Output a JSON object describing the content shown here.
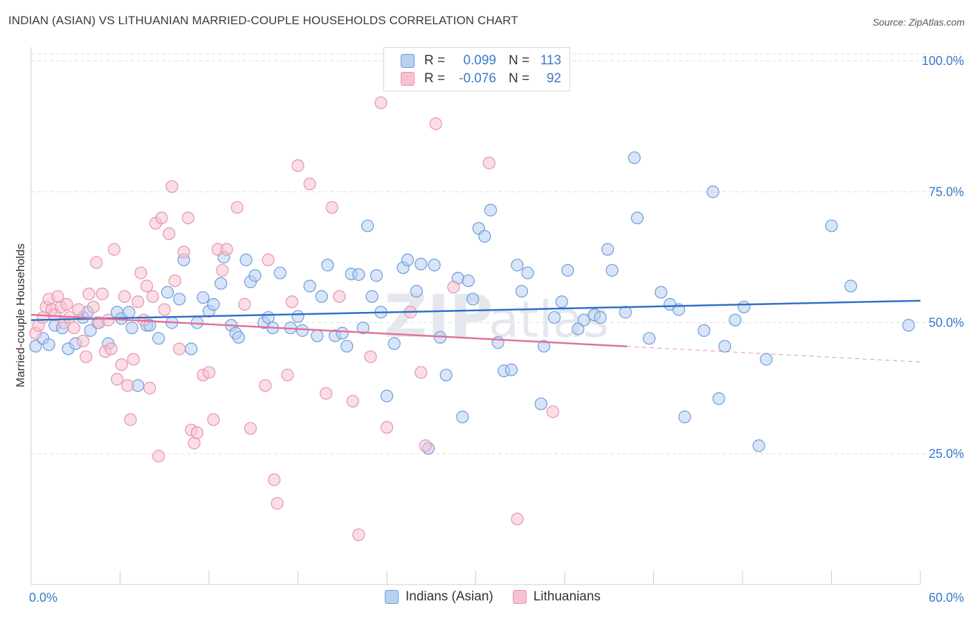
{
  "header": {
    "title": "INDIAN (ASIAN) VS LITHUANIAN MARRIED-COUPLE HOUSEHOLDS CORRELATION CHART",
    "source": "Source: ZipAtlas.com"
  },
  "legend": {
    "rows": [
      {
        "r_label": "R =",
        "r_value": "0.099",
        "n_label": "N =",
        "n_value": "113"
      },
      {
        "r_label": "R =",
        "r_value": "-0.076",
        "n_label": "N =",
        "n_value": "92"
      }
    ]
  },
  "colors": {
    "blue_fill": "#b8d0f2",
    "blue_stroke": "#6c9bd8",
    "blue_line": "#2f6fc8",
    "pink_fill": "#f6c2d2",
    "pink_stroke": "#e890ad",
    "pink_line": "#e0709a",
    "axis_text": "#3a78c8",
    "grid": "#dddddd"
  },
  "chart_data": {
    "type": "scatter",
    "title": "INDIAN (ASIAN) VS LITHUANIAN MARRIED-COUPLE HOUSEHOLDS CORRELATION CHART",
    "xlabel": "",
    "ylabel": "Married-couple Households",
    "xlim": [
      0,
      60
    ],
    "ylim": [
      0,
      105
    ],
    "x_tick_labels": [
      "0.0%",
      "60.0%"
    ],
    "y_ticks": [
      25,
      50,
      75,
      100
    ],
    "y_tick_labels": [
      "25.0%",
      "50.0%",
      "75.0%",
      "100.0%"
    ],
    "watermark": "ZIPatlas",
    "series": [
      {
        "name": "Indians (Asian)",
        "color": "blue",
        "trend": {
          "x": [
            0,
            60
          ],
          "y": [
            50.5,
            54.2
          ],
          "solid_until": 60
        },
        "points": [
          [
            0.3,
            45.5
          ],
          [
            0.8,
            47
          ],
          [
            1.2,
            45.8
          ],
          [
            1.6,
            49.5
          ],
          [
            2.1,
            49
          ],
          [
            2.5,
            45
          ],
          [
            3.0,
            46
          ],
          [
            3.5,
            51
          ],
          [
            3.8,
            52
          ],
          [
            4.0,
            48.5
          ],
          [
            4.5,
            50
          ],
          [
            5.2,
            46
          ],
          [
            5.8,
            52
          ],
          [
            6.1,
            50.8
          ],
          [
            6.6,
            52
          ],
          [
            6.8,
            49
          ],
          [
            7.2,
            38
          ],
          [
            7.8,
            49.5
          ],
          [
            8.0,
            49.5
          ],
          [
            8.6,
            47
          ],
          [
            9.2,
            55.8
          ],
          [
            9.5,
            50
          ],
          [
            10.0,
            54.5
          ],
          [
            10.3,
            62
          ],
          [
            10.8,
            45
          ],
          [
            11.2,
            50
          ],
          [
            11.6,
            54.8
          ],
          [
            12.0,
            52.2
          ],
          [
            12.3,
            53.5
          ],
          [
            12.8,
            57.5
          ],
          [
            13.0,
            62.5
          ],
          [
            13.5,
            49.5
          ],
          [
            13.8,
            48
          ],
          [
            14.0,
            47.2
          ],
          [
            14.5,
            62
          ],
          [
            14.8,
            57.8
          ],
          [
            15.1,
            59
          ],
          [
            15.7,
            50
          ],
          [
            16.0,
            51
          ],
          [
            16.3,
            49
          ],
          [
            16.8,
            59.5
          ],
          [
            17.5,
            49
          ],
          [
            18.0,
            51.2
          ],
          [
            18.3,
            48.5
          ],
          [
            18.8,
            57
          ],
          [
            19.3,
            47.5
          ],
          [
            19.6,
            55
          ],
          [
            20.0,
            61
          ],
          [
            20.5,
            47.5
          ],
          [
            21.0,
            48
          ],
          [
            21.3,
            45.5
          ],
          [
            21.6,
            59.3
          ],
          [
            22.1,
            59.2
          ],
          [
            22.4,
            49
          ],
          [
            22.7,
            68.5
          ],
          [
            23.0,
            55
          ],
          [
            23.3,
            59
          ],
          [
            23.6,
            52
          ],
          [
            24.0,
            36
          ],
          [
            24.5,
            46
          ],
          [
            25.1,
            60.5
          ],
          [
            25.4,
            62
          ],
          [
            26.0,
            56
          ],
          [
            26.3,
            61.2
          ],
          [
            26.8,
            26
          ],
          [
            27.2,
            61
          ],
          [
            27.6,
            47.2
          ],
          [
            28.0,
            40
          ],
          [
            28.8,
            58.5
          ],
          [
            29.1,
            32
          ],
          [
            29.5,
            58
          ],
          [
            29.8,
            54.5
          ],
          [
            30.2,
            68
          ],
          [
            30.6,
            66.5
          ],
          [
            31.0,
            71.5
          ],
          [
            31.5,
            46.2
          ],
          [
            31.9,
            40.8
          ],
          [
            32.4,
            41
          ],
          [
            32.8,
            61
          ],
          [
            33.1,
            56
          ],
          [
            33.5,
            59.5
          ],
          [
            34.4,
            34.5
          ],
          [
            34.6,
            45.5
          ],
          [
            35.3,
            51
          ],
          [
            35.8,
            54
          ],
          [
            36.2,
            60
          ],
          [
            36.9,
            48.8
          ],
          [
            37.3,
            50.5
          ],
          [
            38.0,
            51.5
          ],
          [
            38.4,
            51
          ],
          [
            38.9,
            64
          ],
          [
            39.2,
            60
          ],
          [
            40.1,
            52
          ],
          [
            40.7,
            81.5
          ],
          [
            40.9,
            70
          ],
          [
            41.7,
            47
          ],
          [
            42.5,
            55.8
          ],
          [
            43.1,
            53.5
          ],
          [
            43.7,
            52.5
          ],
          [
            44.1,
            32
          ],
          [
            45.4,
            48.5
          ],
          [
            46.0,
            75
          ],
          [
            46.4,
            35.5
          ],
          [
            46.8,
            45.5
          ],
          [
            47.5,
            50.5
          ],
          [
            48.1,
            53
          ],
          [
            49.1,
            26.5
          ],
          [
            49.6,
            43
          ],
          [
            54.0,
            68.5
          ],
          [
            55.3,
            57
          ],
          [
            59.2,
            49.5
          ]
        ]
      },
      {
        "name": "Lithuanians",
        "color": "pink",
        "trend": {
          "x": [
            0,
            60
          ],
          "y": [
            51.5,
            42.5
          ],
          "solid_until": 40.2
        },
        "points": [
          [
            0.3,
            48
          ],
          [
            0.5,
            49.5
          ],
          [
            0.8,
            51
          ],
          [
            1.0,
            53
          ],
          [
            1.2,
            54.5
          ],
          [
            1.4,
            52.5
          ],
          [
            1.6,
            51.5
          ],
          [
            1.8,
            55
          ],
          [
            2.0,
            53
          ],
          [
            2.2,
            50
          ],
          [
            2.4,
            53.5
          ],
          [
            2.6,
            51
          ],
          [
            2.9,
            49
          ],
          [
            3.2,
            52.5
          ],
          [
            3.5,
            46.5
          ],
          [
            3.7,
            43.5
          ],
          [
            3.9,
            55.5
          ],
          [
            4.2,
            53
          ],
          [
            4.4,
            61.5
          ],
          [
            4.6,
            50
          ],
          [
            4.8,
            55.5
          ],
          [
            5.0,
            44.5
          ],
          [
            5.2,
            50.5
          ],
          [
            5.4,
            45
          ],
          [
            5.6,
            64
          ],
          [
            5.8,
            39.2
          ],
          [
            6.1,
            42
          ],
          [
            6.3,
            55
          ],
          [
            6.5,
            38
          ],
          [
            6.7,
            31.5
          ],
          [
            6.9,
            43
          ],
          [
            7.2,
            54
          ],
          [
            7.4,
            59.5
          ],
          [
            7.6,
            50.5
          ],
          [
            7.8,
            57
          ],
          [
            8.0,
            37.5
          ],
          [
            8.2,
            55
          ],
          [
            8.4,
            69
          ],
          [
            8.6,
            24.5
          ],
          [
            8.8,
            70
          ],
          [
            9.0,
            52.5
          ],
          [
            9.3,
            67
          ],
          [
            9.5,
            76
          ],
          [
            9.7,
            58
          ],
          [
            10.0,
            45
          ],
          [
            10.3,
            63.5
          ],
          [
            10.6,
            70
          ],
          [
            10.8,
            29.5
          ],
          [
            11.0,
            27
          ],
          [
            11.2,
            29
          ],
          [
            11.6,
            40
          ],
          [
            12.0,
            40.5
          ],
          [
            12.3,
            31.5
          ],
          [
            12.6,
            64
          ],
          [
            12.9,
            60
          ],
          [
            13.2,
            64
          ],
          [
            13.9,
            72
          ],
          [
            14.4,
            53.5
          ],
          [
            14.8,
            29.8
          ],
          [
            15.8,
            38
          ],
          [
            16.0,
            62
          ],
          [
            16.4,
            20
          ],
          [
            16.6,
            15.5
          ],
          [
            17.3,
            40
          ],
          [
            17.6,
            54
          ],
          [
            18.0,
            80
          ],
          [
            18.8,
            76.5
          ],
          [
            19.9,
            36.5
          ],
          [
            20.3,
            72
          ],
          [
            20.8,
            55
          ],
          [
            21.7,
            35
          ],
          [
            22.1,
            9.5
          ],
          [
            22.9,
            43.5
          ],
          [
            23.6,
            92
          ],
          [
            24.0,
            30
          ],
          [
            25.6,
            52
          ],
          [
            26.3,
            40.5
          ],
          [
            26.6,
            26.5
          ],
          [
            27.3,
            88
          ],
          [
            28.5,
            56.8
          ],
          [
            30.9,
            80.5
          ],
          [
            32.8,
            12.5
          ],
          [
            35.2,
            33
          ]
        ]
      }
    ]
  }
}
